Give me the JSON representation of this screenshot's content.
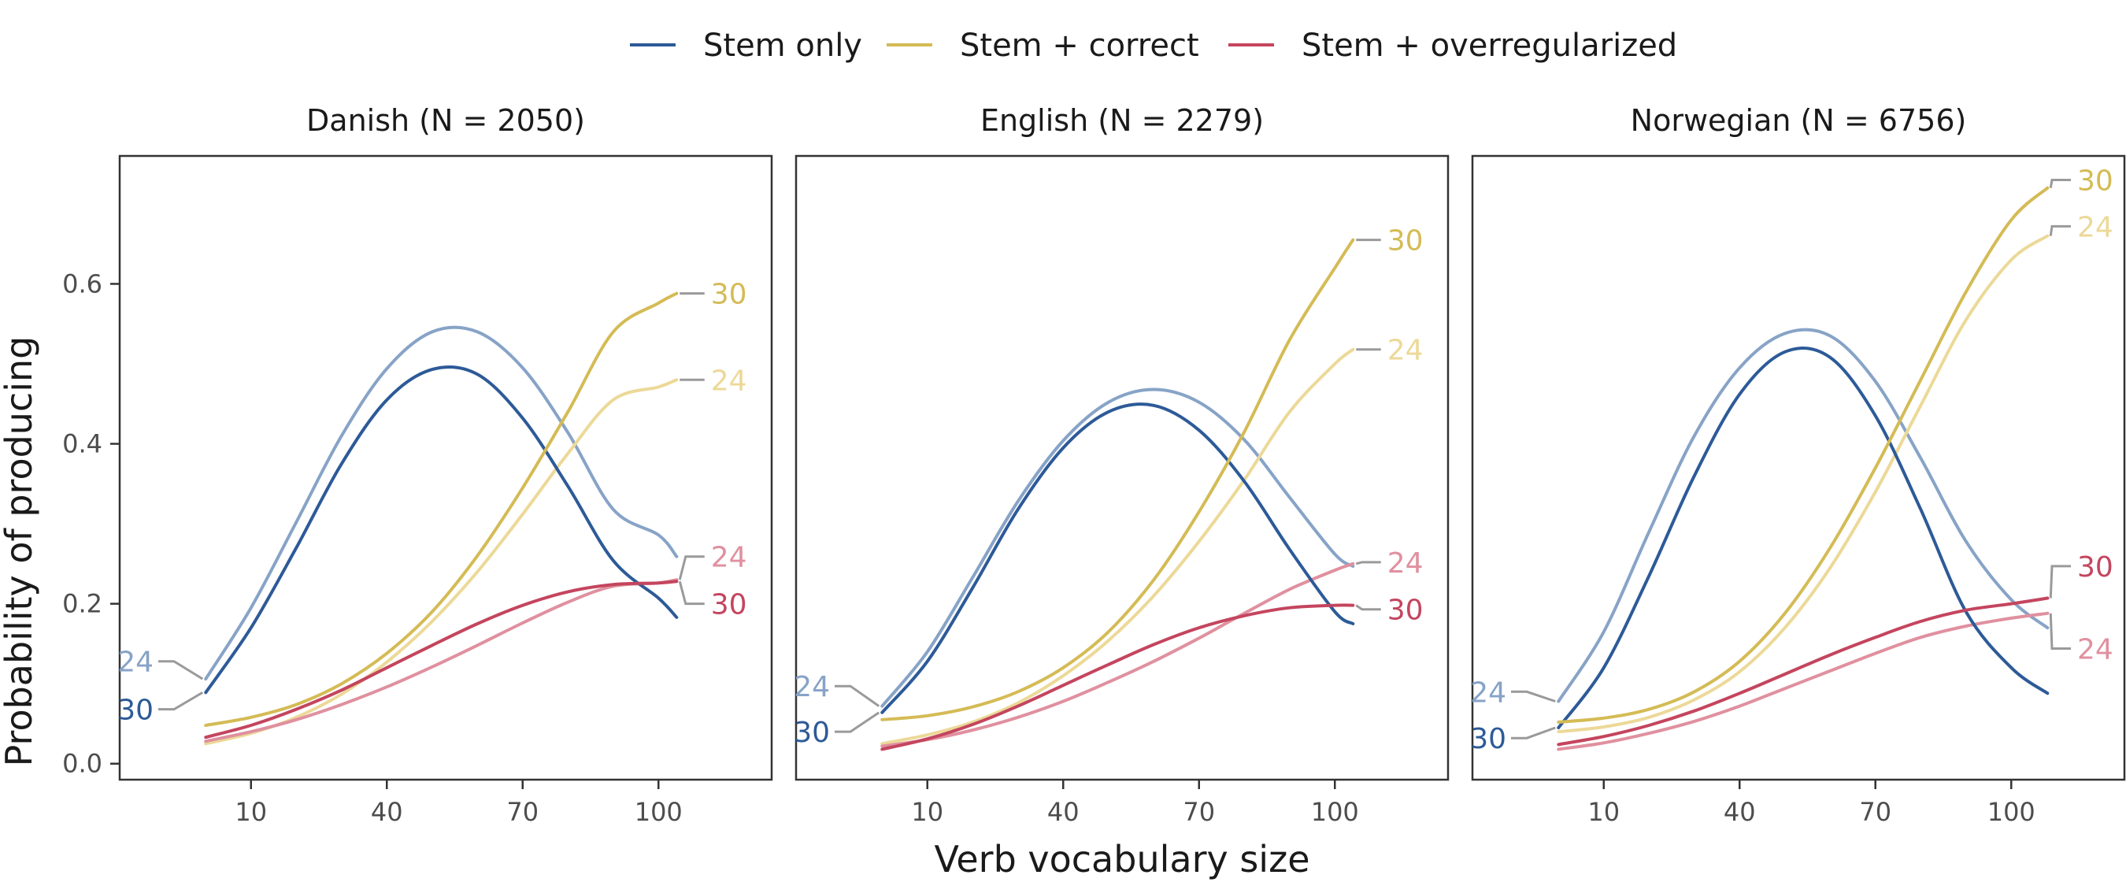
{
  "chart_data": {
    "type": "line",
    "xlabel": "Verb vocabulary size",
    "ylabel": "Probability of producing",
    "xlim": [
      -19,
      125
    ],
    "ylim": [
      -0.02,
      0.76
    ],
    "xticks": [
      10,
      40,
      70,
      100
    ],
    "yticks": [
      0.0,
      0.2,
      0.4,
      0.6
    ],
    "grid": false,
    "legend_position": "top",
    "legend": [
      {
        "name": "Stem only",
        "color": "#2d5a98"
      },
      {
        "name": "Stem + correct",
        "color": "#d4bb55"
      },
      {
        "name": "Stem + overregularized",
        "color": "#c4455e"
      }
    ],
    "panels": [
      {
        "title": "Danish (N = 2050)",
        "series": [
          {
            "category": "Stem only",
            "age": "24",
            "x": [
              0,
              10,
              20,
              30,
              40,
              50,
              60,
              70,
              80,
              90,
              100,
              104
            ],
            "y": [
              0.106,
              0.195,
              0.302,
              0.41,
              0.494,
              0.54,
              0.54,
              0.495,
              0.414,
              0.318,
              0.286,
              0.259
            ]
          },
          {
            "category": "Stem only",
            "age": "30",
            "x": [
              0,
              10,
              20,
              30,
              40,
              50,
              60,
              70,
              80,
              90,
              100,
              104
            ],
            "y": [
              0.089,
              0.17,
              0.27,
              0.375,
              0.455,
              0.493,
              0.487,
              0.432,
              0.347,
              0.254,
              0.207,
              0.183
            ]
          },
          {
            "category": "Stem + correct",
            "age": "30",
            "x": [
              0,
              10,
              20,
              30,
              40,
              50,
              60,
              70,
              80,
              90,
              100,
              104
            ],
            "y": [
              0.048,
              0.058,
              0.074,
              0.1,
              0.138,
              0.19,
              0.26,
              0.345,
              0.44,
              0.54,
              0.576,
              0.588
            ]
          },
          {
            "category": "Stem + correct",
            "age": "24",
            "x": [
              0,
              10,
              20,
              30,
              40,
              50,
              60,
              70,
              80,
              90,
              100,
              104
            ],
            "y": [
              0.025,
              0.038,
              0.058,
              0.087,
              0.127,
              0.178,
              0.24,
              0.312,
              0.388,
              0.455,
              0.471,
              0.48
            ]
          },
          {
            "category": "Stem + overregularized",
            "age": "30",
            "x": [
              0,
              10,
              20,
              30,
              40,
              50,
              60,
              70,
              80,
              90,
              100,
              104
            ],
            "y": [
              0.033,
              0.048,
              0.068,
              0.092,
              0.12,
              0.148,
              0.175,
              0.198,
              0.215,
              0.224,
              0.226,
              0.228
            ]
          },
          {
            "category": "Stem + overregularized",
            "age": "24",
            "x": [
              0,
              10,
              20,
              30,
              40,
              50,
              60,
              70,
              80,
              90,
              100,
              104
            ],
            "y": [
              0.028,
              0.04,
              0.055,
              0.074,
              0.096,
              0.121,
              0.148,
              0.176,
              0.202,
              0.222,
              0.226,
              0.23
            ]
          }
        ],
        "end_labels": [
          {
            "text": "24",
            "side": "left",
            "category": "Stem only",
            "age": "24",
            "tone": "light",
            "x": -15,
            "y": 0.128
          },
          {
            "text": "30",
            "side": "left",
            "category": "Stem only",
            "age": "30",
            "tone": "dark",
            "x": -15,
            "y": 0.068
          },
          {
            "text": "30",
            "side": "right",
            "category": "Stem + correct",
            "age": "30",
            "tone": "dark",
            "x": 114,
            "y": 0.588
          },
          {
            "text": "24",
            "side": "right",
            "category": "Stem + correct",
            "age": "24",
            "tone": "light",
            "x": 114,
            "y": 0.48
          },
          {
            "text": "24",
            "side": "right",
            "category": "Stem + overregularized",
            "age": "24",
            "tone": "light",
            "x": 114,
            "y": 0.259
          },
          {
            "text": "30",
            "side": "right",
            "category": "Stem + overregularized",
            "age": "30",
            "tone": "dark",
            "x": 114,
            "y": 0.2
          }
        ]
      },
      {
        "title": "English (N = 2279)",
        "series": [
          {
            "category": "Stem only",
            "age": "24",
            "x": [
              0,
              10,
              20,
              30,
              40,
              50,
              60,
              70,
              80,
              90,
              100,
              104
            ],
            "y": [
              0.072,
              0.14,
              0.233,
              0.328,
              0.404,
              0.452,
              0.468,
              0.452,
              0.405,
              0.333,
              0.262,
              0.247
            ]
          },
          {
            "category": "Stem only",
            "age": "30",
            "x": [
              0,
              10,
              20,
              30,
              40,
              50,
              60,
              70,
              80,
              90,
              100,
              104
            ],
            "y": [
              0.064,
              0.128,
              0.22,
              0.318,
              0.395,
              0.44,
              0.448,
              0.417,
              0.353,
              0.268,
              0.19,
              0.175
            ]
          },
          {
            "category": "Stem + correct",
            "age": "30",
            "x": [
              0,
              10,
              20,
              30,
              40,
              50,
              60,
              70,
              80,
              90,
              100,
              104
            ],
            "y": [
              0.055,
              0.06,
              0.071,
              0.09,
              0.12,
              0.165,
              0.23,
              0.315,
              0.415,
              0.53,
              0.62,
              0.655
            ]
          },
          {
            "category": "Stem + correct",
            "age": "24",
            "x": [
              0,
              10,
              20,
              30,
              40,
              50,
              60,
              70,
              80,
              90,
              100,
              104
            ],
            "y": [
              0.025,
              0.036,
              0.052,
              0.076,
              0.11,
              0.154,
              0.21,
              0.278,
              0.355,
              0.44,
              0.5,
              0.518
            ]
          },
          {
            "category": "Stem + overregularized",
            "age": "30",
            "x": [
              0,
              10,
              20,
              30,
              40,
              50,
              60,
              70,
              80,
              90,
              100,
              104
            ],
            "y": [
              0.018,
              0.031,
              0.049,
              0.072,
              0.098,
              0.124,
              0.149,
              0.17,
              0.185,
              0.195,
              0.198,
              0.198
            ]
          },
          {
            "category": "Stem + overregularized",
            "age": "24",
            "x": [
              0,
              10,
              20,
              30,
              40,
              50,
              60,
              70,
              80,
              90,
              100,
              104
            ],
            "y": [
              0.022,
              0.03,
              0.042,
              0.058,
              0.078,
              0.102,
              0.128,
              0.157,
              0.188,
              0.218,
              0.242,
              0.25
            ]
          }
        ],
        "end_labels": [
          {
            "text": "24",
            "side": "left",
            "category": "Stem only",
            "age": "24",
            "tone": "light",
            "x": -15,
            "y": 0.097
          },
          {
            "text": "30",
            "side": "left",
            "category": "Stem only",
            "age": "30",
            "tone": "dark",
            "x": -15,
            "y": 0.04
          },
          {
            "text": "30",
            "side": "right",
            "category": "Stem + correct",
            "age": "30",
            "tone": "dark",
            "x": 114,
            "y": 0.655
          },
          {
            "text": "24",
            "side": "right",
            "category": "Stem + correct",
            "age": "24",
            "tone": "light",
            "x": 114,
            "y": 0.518
          },
          {
            "text": "24",
            "side": "right",
            "category": "Stem + overregularized",
            "age": "24",
            "tone": "light",
            "x": 114,
            "y": 0.252
          },
          {
            "text": "30",
            "side": "right",
            "category": "Stem + overregularized",
            "age": "30",
            "tone": "dark",
            "x": 114,
            "y": 0.193
          }
        ]
      },
      {
        "title": "Norwegian (N = 6756)",
        "series": [
          {
            "category": "Stem only",
            "age": "24",
            "x": [
              0,
              10,
              20,
              30,
              40,
              50,
              60,
              70,
              80,
              90,
              100,
              108
            ],
            "y": [
              0.078,
              0.165,
              0.29,
              0.41,
              0.495,
              0.538,
              0.535,
              0.478,
              0.382,
              0.278,
              0.205,
              0.17
            ]
          },
          {
            "category": "Stem only",
            "age": "30",
            "x": [
              0,
              10,
              20,
              30,
              40,
              50,
              60,
              70,
              80,
              90,
              100,
              108
            ],
            "y": [
              0.045,
              0.12,
              0.235,
              0.36,
              0.462,
              0.515,
              0.508,
              0.435,
              0.318,
              0.19,
              0.12,
              0.088
            ]
          },
          {
            "category": "Stem + correct",
            "age": "30",
            "x": [
              0,
              10,
              20,
              30,
              40,
              50,
              60,
              70,
              80,
              90,
              100,
              108
            ],
            "y": [
              0.052,
              0.057,
              0.068,
              0.09,
              0.128,
              0.188,
              0.27,
              0.37,
              0.48,
              0.59,
              0.68,
              0.72
            ]
          },
          {
            "category": "Stem + correct",
            "age": "24",
            "x": [
              0,
              10,
              20,
              30,
              40,
              50,
              60,
              70,
              80,
              90,
              100,
              108
            ],
            "y": [
              0.04,
              0.046,
              0.058,
              0.08,
              0.115,
              0.17,
              0.245,
              0.34,
              0.448,
              0.555,
              0.63,
              0.66
            ]
          },
          {
            "category": "Stem + overregularized",
            "age": "30",
            "x": [
              0,
              10,
              20,
              30,
              40,
              50,
              60,
              70,
              80,
              90,
              100,
              108
            ],
            "y": [
              0.024,
              0.034,
              0.048,
              0.066,
              0.088,
              0.112,
              0.136,
              0.158,
              0.178,
              0.192,
              0.2,
              0.207
            ]
          },
          {
            "category": "Stem + overregularized",
            "age": "24",
            "x": [
              0,
              10,
              20,
              30,
              40,
              50,
              60,
              70,
              80,
              90,
              100,
              108
            ],
            "y": [
              0.018,
              0.026,
              0.038,
              0.053,
              0.072,
              0.094,
              0.116,
              0.138,
              0.158,
              0.172,
              0.182,
              0.188
            ]
          }
        ],
        "end_labels": [
          {
            "text": "24",
            "side": "left",
            "category": "Stem only",
            "age": "24",
            "tone": "light",
            "x": -15,
            "y": 0.09
          },
          {
            "text": "30",
            "side": "left",
            "category": "Stem only",
            "age": "30",
            "tone": "dark",
            "x": -15,
            "y": 0.032
          },
          {
            "text": "30",
            "side": "right",
            "category": "Stem + correct",
            "age": "30",
            "tone": "dark",
            "x": 117,
            "y": 0.73
          },
          {
            "text": "24",
            "side": "right",
            "category": "Stem + correct",
            "age": "24",
            "tone": "light",
            "x": 117,
            "y": 0.672
          },
          {
            "text": "30",
            "side": "right",
            "category": "Stem + overregularized",
            "age": "30",
            "tone": "dark",
            "x": 117,
            "y": 0.247
          },
          {
            "text": "24",
            "side": "right",
            "category": "Stem + overregularized",
            "age": "24",
            "tone": "light",
            "x": 117,
            "y": 0.144
          }
        ]
      }
    ],
    "colors": {
      "Stem only": {
        "dark": "#2d5a98",
        "light": "#87a3c7"
      },
      "Stem + correct": {
        "dark": "#d4bb55",
        "light": "#ecd998"
      },
      "Stem + overregularized": {
        "dark": "#c4455e",
        "light": "#e0909f"
      },
      "connector": "#9a9a9a",
      "axis": "#333333"
    }
  }
}
